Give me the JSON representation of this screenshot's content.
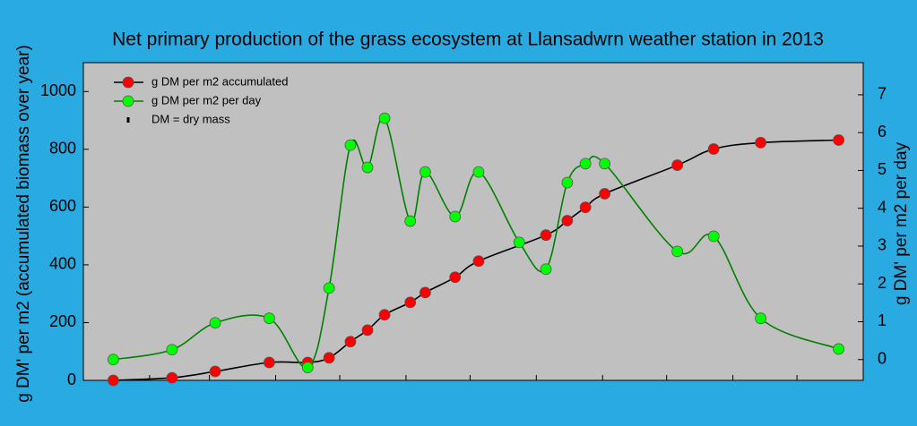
{
  "chart_data": {
    "type": "line",
    "title": "Net primary production of the grass ecosystem at Llansadwrn weather station in 2013",
    "y_label": "g DM' per m2 (accumulated biomass over year)",
    "y2_label": "g DM' per m2 per day",
    "legend_note": "DM = dry mass",
    "legend": "upper-left",
    "xlim": [
      0,
      365
    ],
    "xticks": [
      31,
      59,
      90,
      120,
      151,
      181,
      212,
      243,
      273,
      304,
      334
    ],
    "ylim": [
      0,
      1100
    ],
    "yticks": [
      0,
      200,
      400,
      600,
      800,
      1000
    ],
    "y2lim": [
      -0.55,
      7.85
    ],
    "y2ticks": [
      0,
      1,
      2,
      3,
      4,
      5,
      6,
      7
    ],
    "series": [
      {
        "name": "g DM per m2 accumulated",
        "color": "#ff0000",
        "line_color": "#000000",
        "x": [
          14,
          41.5,
          61.7,
          87,
          105,
          115,
          125,
          133,
          141,
          153,
          160,
          174,
          185,
          216.5,
          226.5,
          235,
          244,
          278,
          295,
          317,
          353.5
        ],
        "values": [
          0,
          9,
          31,
          62,
          62,
          78,
          134,
          174,
          227,
          270,
          304,
          357,
          413,
          503,
          553,
          599,
          646,
          745,
          801,
          823,
          832
        ]
      },
      {
        "name": "g DM per m2 per day",
        "color": "#00ff00",
        "line_color": "#008000",
        "axis": "y2",
        "x": [
          14,
          41.5,
          61.7,
          87,
          105,
          115,
          125,
          133,
          141,
          153,
          160,
          174,
          185,
          204,
          216.5,
          226.5,
          235,
          244,
          278,
          295,
          317,
          353.5
        ],
        "values": [
          0,
          0.26,
          0.97,
          1.09,
          -0.21,
          1.89,
          5.67,
          5.08,
          6.38,
          3.66,
          4.96,
          3.78,
          4.96,
          3.1,
          2.39,
          4.68,
          5.18,
          5.18,
          2.86,
          3.26,
          1.09,
          0.28
        ]
      }
    ]
  }
}
